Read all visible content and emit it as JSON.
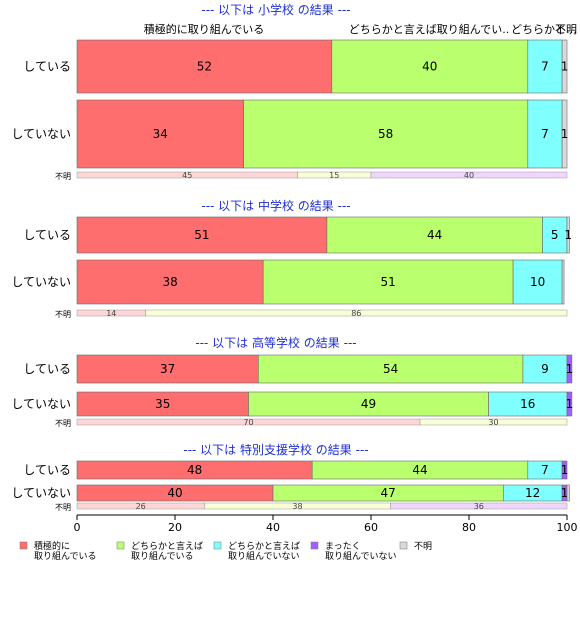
{
  "chart_data": {
    "type": "bar",
    "orientation": "horizontal",
    "stacked": true,
    "xlim": [
      0,
      100
    ],
    "xticks": [
      0,
      20,
      40,
      60,
      80,
      100
    ],
    "category_headers": [
      "積極的に取り組んでいる",
      "どちらかと言えば取り組んでい..",
      "どちらかと…",
      "不明"
    ],
    "legend": {
      "position": "bottom",
      "items": [
        {
          "label_lines": [
            "積極的に",
            "取り組んでいる"
          ],
          "color": "#ff6e6e"
        },
        {
          "label_lines": [
            "どちらかと言えば",
            "取り組んでいる"
          ],
          "color": "#b9ff6e"
        },
        {
          "label_lines": [
            "どちらかと言えば",
            "取り組んでいない"
          ],
          "color": "#80ffff"
        },
        {
          "label_lines": [
            "まったく",
            "取り組んでいない"
          ],
          "color": "#a060ff"
        },
        {
          "label_lines": [
            "不明"
          ],
          "color": "#d9d9d9"
        }
      ]
    },
    "unknown_label": "不明",
    "unknown_colors": [
      "#ffd6d6",
      "#f8ffd6",
      "#f0d6ff"
    ],
    "sections": [
      {
        "title": "--- 以下は 小学校 の結果 ---",
        "rows": [
          {
            "label": "している",
            "values": [
              52,
              40,
              7,
              0,
              1
            ],
            "labels": [
              "52",
              "40",
              "7",
              "",
              "1"
            ]
          },
          {
            "label": "していない",
            "values": [
              34,
              58,
              7,
              0,
              1
            ],
            "labels": [
              "34",
              "58",
              "7",
              "",
              "1"
            ]
          }
        ],
        "unknown": [
          45,
          15,
          40
        ]
      },
      {
        "title": "--- 以下は 中学校 の結果 ---",
        "rows": [
          {
            "label": "している",
            "values": [
              51,
              44,
              5,
              0,
              0.5
            ],
            "labels": [
              "51",
              "44",
              "5",
              "",
              "1"
            ]
          },
          {
            "label": "していない",
            "values": [
              38,
              51,
              10,
              0,
              0.4
            ],
            "labels": [
              "38",
              "51",
              "10",
              "",
              ""
            ]
          }
        ],
        "unknown": [
          14,
          86
        ]
      },
      {
        "title": "--- 以下は 高等学校 の結果 ---",
        "rows": [
          {
            "label": "している",
            "values": [
              37,
              54,
              9,
              1,
              0
            ],
            "labels": [
              "37",
              "54",
              "9",
              "1",
              ""
            ]
          },
          {
            "label": "していない",
            "values": [
              35,
              49,
              16,
              1,
              0
            ],
            "labels": [
              "35",
              "49",
              "16",
              "1",
              ""
            ]
          }
        ],
        "unknown": [
          70,
          30
        ]
      },
      {
        "title": "--- 以下は 特別支援学校 の結果 ---",
        "rows": [
          {
            "label": "している",
            "values": [
              48,
              44,
              7,
              1,
              0
            ],
            "labels": [
              "48",
              "44",
              "7",
              "1",
              ""
            ]
          },
          {
            "label": "していない",
            "values": [
              40,
              47,
              12,
              1,
              0.5
            ],
            "labels": [
              "40",
              "47",
              "12",
              "1",
              ""
            ]
          }
        ],
        "unknown": [
          26,
          38,
          36
        ]
      }
    ]
  }
}
